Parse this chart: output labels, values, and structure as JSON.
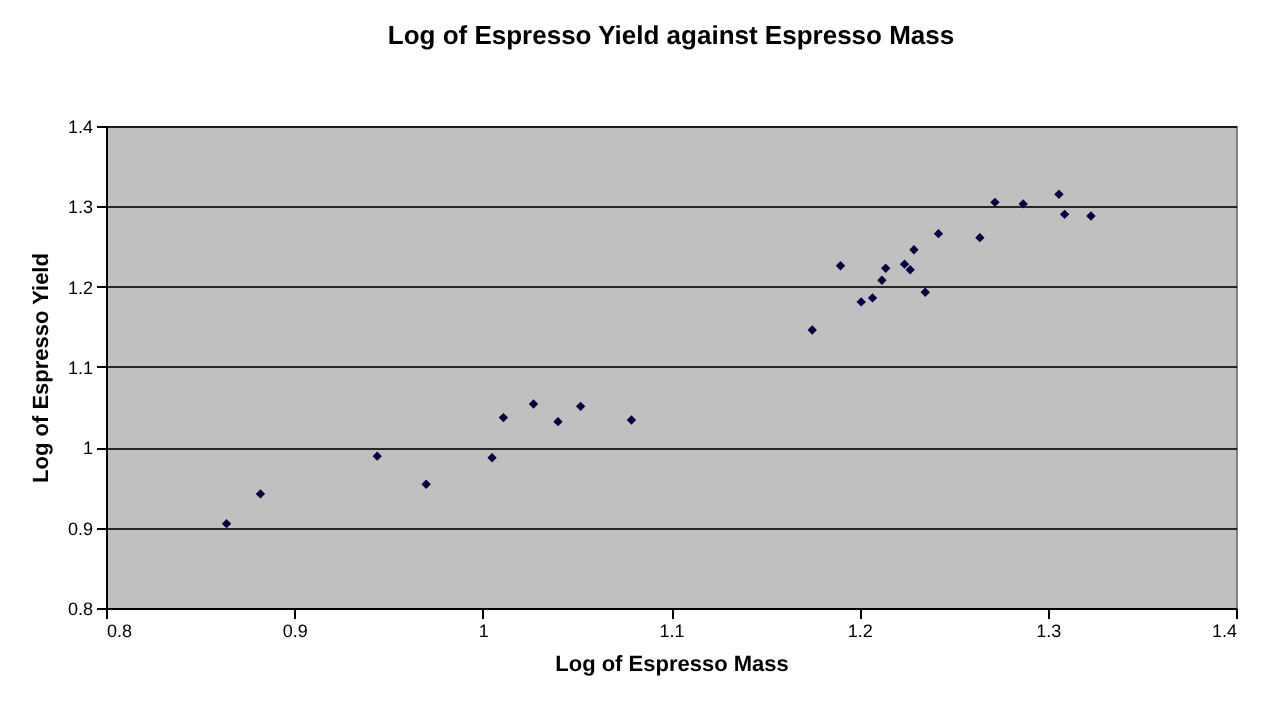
{
  "chart_data": {
    "type": "scatter",
    "title": "Log of Espresso Yield against Espresso Mass",
    "xlabel": "Log of Espresso Mass",
    "ylabel": "Log of Espresso Yield",
    "x": [
      0.864,
      0.882,
      0.944,
      0.97,
      1.005,
      1.011,
      1.027,
      1.04,
      1.052,
      1.079,
      1.175,
      1.19,
      1.201,
      1.207,
      1.212,
      1.214,
      1.224,
      1.227,
      1.229,
      1.235,
      1.242,
      1.264,
      1.272,
      1.287,
      1.306,
      1.309,
      1.323
    ],
    "series": [
      {
        "color": "#000040",
        "values": [
          0.905,
          0.942,
          0.989,
          0.954,
          0.987,
          1.037,
          1.054,
          1.032,
          1.051,
          1.034,
          1.146,
          1.226,
          1.181,
          1.186,
          1.208,
          1.223,
          1.228,
          1.221,
          1.246,
          1.193,
          1.266,
          1.261,
          1.305,
          1.303,
          1.315,
          1.29,
          1.288
        ]
      }
    ],
    "xlim": [
      0.8,
      1.4
    ],
    "xticks": [
      0.8,
      0.9,
      1,
      1.1,
      1.2,
      1.3,
      1.4
    ],
    "ylim": [
      0.8,
      1.4
    ],
    "yticks": [
      0.8,
      0.9,
      1,
      1.1,
      1.2,
      1.3,
      1.4
    ],
    "grid": "y",
    "marker": "diamond"
  }
}
